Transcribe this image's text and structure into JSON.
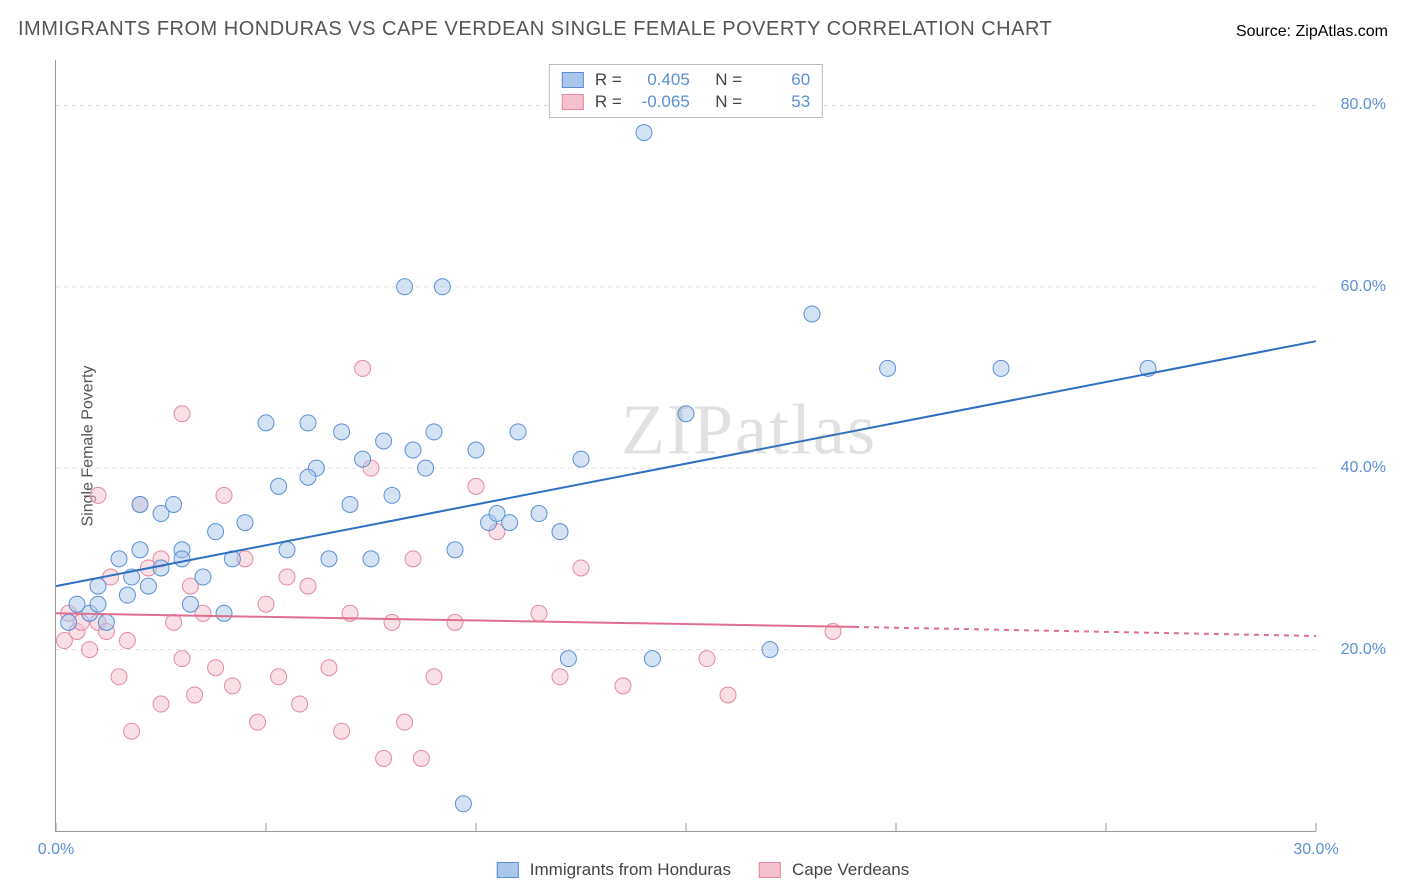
{
  "title": "IMMIGRANTS FROM HONDURAS VS CAPE VERDEAN SINGLE FEMALE POVERTY CORRELATION CHART",
  "source_prefix": "Source: ",
  "source_name": "ZipAtlas.com",
  "y_axis_label": "Single Female Poverty",
  "watermark": "ZIPatlas",
  "chart": {
    "type": "scatter",
    "background_color": "#ffffff",
    "grid_color": "#dddddd",
    "grid_dash": "4,4",
    "axis_color": "#999999",
    "xlim": [
      0,
      30
    ],
    "ylim": [
      0,
      85
    ],
    "x_ticks": [
      0,
      5,
      10,
      15,
      20,
      25,
      30
    ],
    "x_tick_labels": [
      "0.0%",
      "",
      "",
      "",
      "",
      "",
      "30.0%"
    ],
    "y_ticks": [
      20,
      40,
      60,
      80
    ],
    "y_tick_labels": [
      "20.0%",
      "40.0%",
      "60.0%",
      "80.0%"
    ],
    "marker_radius": 8,
    "marker_opacity": 0.5,
    "line_width": 2,
    "tick_label_color": "#5a8fd6",
    "tick_label_fontsize": 16
  },
  "series": {
    "honduras": {
      "label": "Immigrants from Honduras",
      "fill_color": "#a9c7ea",
      "stroke_color": "#5a8fd6",
      "line_color": "#2f6fc1",
      "r_value": "0.405",
      "n_value": "60",
      "regression": {
        "x1": 0,
        "y1": 27,
        "x2": 30,
        "y2": 54
      },
      "points": [
        [
          0.3,
          23
        ],
        [
          0.5,
          25
        ],
        [
          0.8,
          24
        ],
        [
          1.0,
          25
        ],
        [
          1.0,
          27
        ],
        [
          1.2,
          23
        ],
        [
          1.5,
          30
        ],
        [
          1.7,
          26
        ],
        [
          1.8,
          28
        ],
        [
          2.0,
          31
        ],
        [
          2.0,
          36
        ],
        [
          2.2,
          27
        ],
        [
          2.5,
          35
        ],
        [
          2.5,
          29
        ],
        [
          2.8,
          36
        ],
        [
          3.0,
          31
        ],
        [
          3.0,
          30
        ],
        [
          3.2,
          25
        ],
        [
          3.5,
          28
        ],
        [
          3.8,
          33
        ],
        [
          4.0,
          24
        ],
        [
          4.2,
          30
        ],
        [
          4.5,
          34
        ],
        [
          5.0,
          45
        ],
        [
          5.3,
          38
        ],
        [
          5.5,
          31
        ],
        [
          6.0,
          45
        ],
        [
          6.2,
          40
        ],
        [
          6.5,
          30
        ],
        [
          6.8,
          44
        ],
        [
          7.0,
          36
        ],
        [
          7.3,
          41
        ],
        [
          7.5,
          30
        ],
        [
          7.8,
          43
        ],
        [
          8.0,
          37
        ],
        [
          8.3,
          60
        ],
        [
          8.5,
          42
        ],
        [
          8.8,
          40
        ],
        [
          9.0,
          44
        ],
        [
          9.2,
          60
        ],
        [
          9.5,
          31
        ],
        [
          9.7,
          3
        ],
        [
          10.0,
          42
        ],
        [
          10.3,
          34
        ],
        [
          10.5,
          35
        ],
        [
          10.8,
          34
        ],
        [
          11.0,
          44
        ],
        [
          11.5,
          35
        ],
        [
          12.0,
          33
        ],
        [
          12.2,
          19
        ],
        [
          12.5,
          41
        ],
        [
          14.0,
          77
        ],
        [
          14.2,
          19
        ],
        [
          15.0,
          46
        ],
        [
          17.0,
          20
        ],
        [
          18.0,
          57
        ],
        [
          19.8,
          51
        ],
        [
          22.5,
          51
        ],
        [
          26.0,
          51
        ],
        [
          6.0,
          39
        ]
      ]
    },
    "capeverde": {
      "label": "Cape Verdeans",
      "fill_color": "#f4c0cd",
      "stroke_color": "#e589a3",
      "line_color": "#e06f8f",
      "r_value": "-0.065",
      "n_value": "53",
      "regression": {
        "x1": 0,
        "y1": 24,
        "x2": 19,
        "y2": 22.5
      },
      "extrap": {
        "x1": 19,
        "y1": 22.5,
        "x2": 30,
        "y2": 21.5
      },
      "points": [
        [
          0.2,
          21
        ],
        [
          0.3,
          24
        ],
        [
          0.5,
          22
        ],
        [
          0.6,
          23
        ],
        [
          0.8,
          20
        ],
        [
          1.0,
          23
        ],
        [
          1.0,
          37
        ],
        [
          1.2,
          22
        ],
        [
          1.3,
          28
        ],
        [
          1.5,
          17
        ],
        [
          1.7,
          21
        ],
        [
          1.8,
          11
        ],
        [
          2.0,
          36
        ],
        [
          2.2,
          29
        ],
        [
          2.5,
          30
        ],
        [
          2.5,
          14
        ],
        [
          2.8,
          23
        ],
        [
          3.0,
          19
        ],
        [
          3.0,
          46
        ],
        [
          3.2,
          27
        ],
        [
          3.3,
          15
        ],
        [
          3.5,
          24
        ],
        [
          3.8,
          18
        ],
        [
          4.0,
          37
        ],
        [
          4.2,
          16
        ],
        [
          4.5,
          30
        ],
        [
          4.8,
          12
        ],
        [
          5.0,
          25
        ],
        [
          5.3,
          17
        ],
        [
          5.5,
          28
        ],
        [
          5.8,
          14
        ],
        [
          6.0,
          27
        ],
        [
          6.5,
          18
        ],
        [
          6.8,
          11
        ],
        [
          7.0,
          24
        ],
        [
          7.3,
          51
        ],
        [
          7.5,
          40
        ],
        [
          7.8,
          8
        ],
        [
          8.0,
          23
        ],
        [
          8.3,
          12
        ],
        [
          8.5,
          30
        ],
        [
          8.7,
          8
        ],
        [
          9.0,
          17
        ],
        [
          9.5,
          23
        ],
        [
          10.0,
          38
        ],
        [
          10.5,
          33
        ],
        [
          11.5,
          24
        ],
        [
          12.0,
          17
        ],
        [
          12.5,
          29
        ],
        [
          13.5,
          16
        ],
        [
          15.5,
          19
        ],
        [
          16.0,
          15
        ],
        [
          18.5,
          22
        ]
      ]
    }
  },
  "legend_labels": {
    "r_prefix": "R =",
    "n_prefix": "N ="
  }
}
